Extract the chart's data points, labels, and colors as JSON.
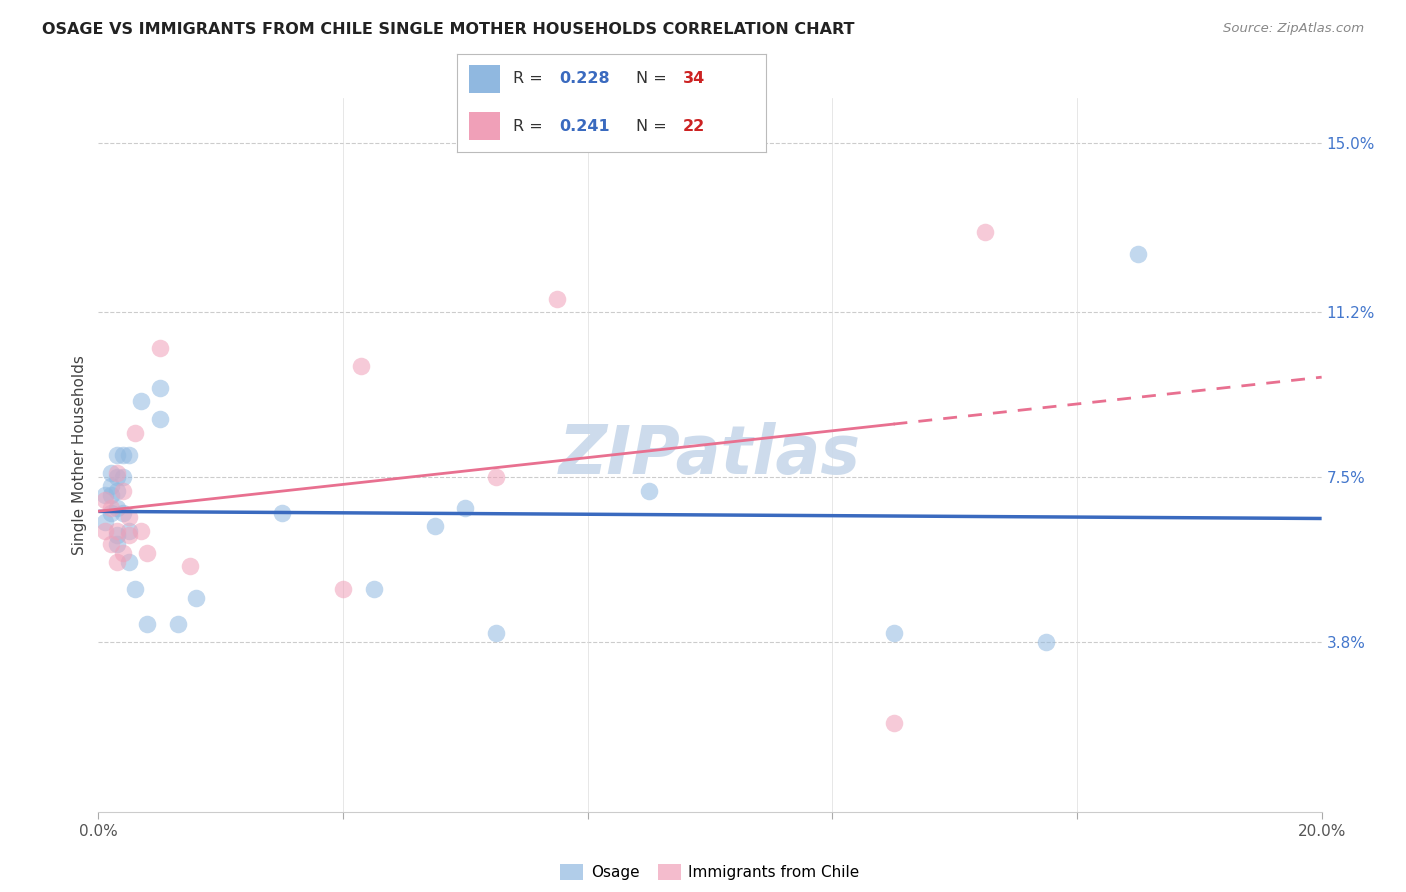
{
  "title": "OSAGE VS IMMIGRANTS FROM CHILE SINGLE MOTHER HOUSEHOLDS CORRELATION CHART",
  "source": "Source: ZipAtlas.com",
  "ylabel": "Single Mother Households",
  "xlim": [
    0.0,
    0.2
  ],
  "ylim": [
    0.0,
    0.16
  ],
  "ytick_right_values": [
    0.038,
    0.075,
    0.112,
    0.15
  ],
  "osage_color": "#90b8e0",
  "chile_color": "#f0a0b8",
  "osage_line_color": "#3a6abf",
  "chile_line_color": "#e87090",
  "watermark_text": "ZIPatlas",
  "watermark_color": "#c8d8ea",
  "osage_x": [
    0.001,
    0.001,
    0.002,
    0.002,
    0.002,
    0.002,
    0.003,
    0.003,
    0.003,
    0.003,
    0.003,
    0.003,
    0.004,
    0.004,
    0.004,
    0.005,
    0.005,
    0.005,
    0.006,
    0.007,
    0.008,
    0.01,
    0.01,
    0.013,
    0.016,
    0.03,
    0.045,
    0.055,
    0.06,
    0.065,
    0.09,
    0.13,
    0.155,
    0.17
  ],
  "osage_y": [
    0.065,
    0.071,
    0.067,
    0.071,
    0.073,
    0.076,
    0.06,
    0.062,
    0.068,
    0.072,
    0.075,
    0.08,
    0.067,
    0.075,
    0.08,
    0.056,
    0.063,
    0.08,
    0.05,
    0.092,
    0.042,
    0.088,
    0.095,
    0.042,
    0.048,
    0.067,
    0.05,
    0.064,
    0.068,
    0.04,
    0.072,
    0.04,
    0.038,
    0.125
  ],
  "chile_x": [
    0.001,
    0.001,
    0.002,
    0.002,
    0.003,
    0.003,
    0.003,
    0.004,
    0.004,
    0.005,
    0.005,
    0.006,
    0.007,
    0.008,
    0.01,
    0.015,
    0.04,
    0.043,
    0.065,
    0.075,
    0.13,
    0.145
  ],
  "chile_y": [
    0.063,
    0.07,
    0.06,
    0.068,
    0.056,
    0.063,
    0.076,
    0.058,
    0.072,
    0.062,
    0.066,
    0.085,
    0.063,
    0.058,
    0.104,
    0.055,
    0.05,
    0.1,
    0.075,
    0.115,
    0.02,
    0.13
  ],
  "legend_r1": "0.228",
  "legend_n1": "34",
  "legend_r2": "0.241",
  "legend_n2": "22",
  "legend_color1": "#90b8e0",
  "legend_color2": "#f0a0b8",
  "r_color": "#3a6abf",
  "n_color": "#cc2222"
}
